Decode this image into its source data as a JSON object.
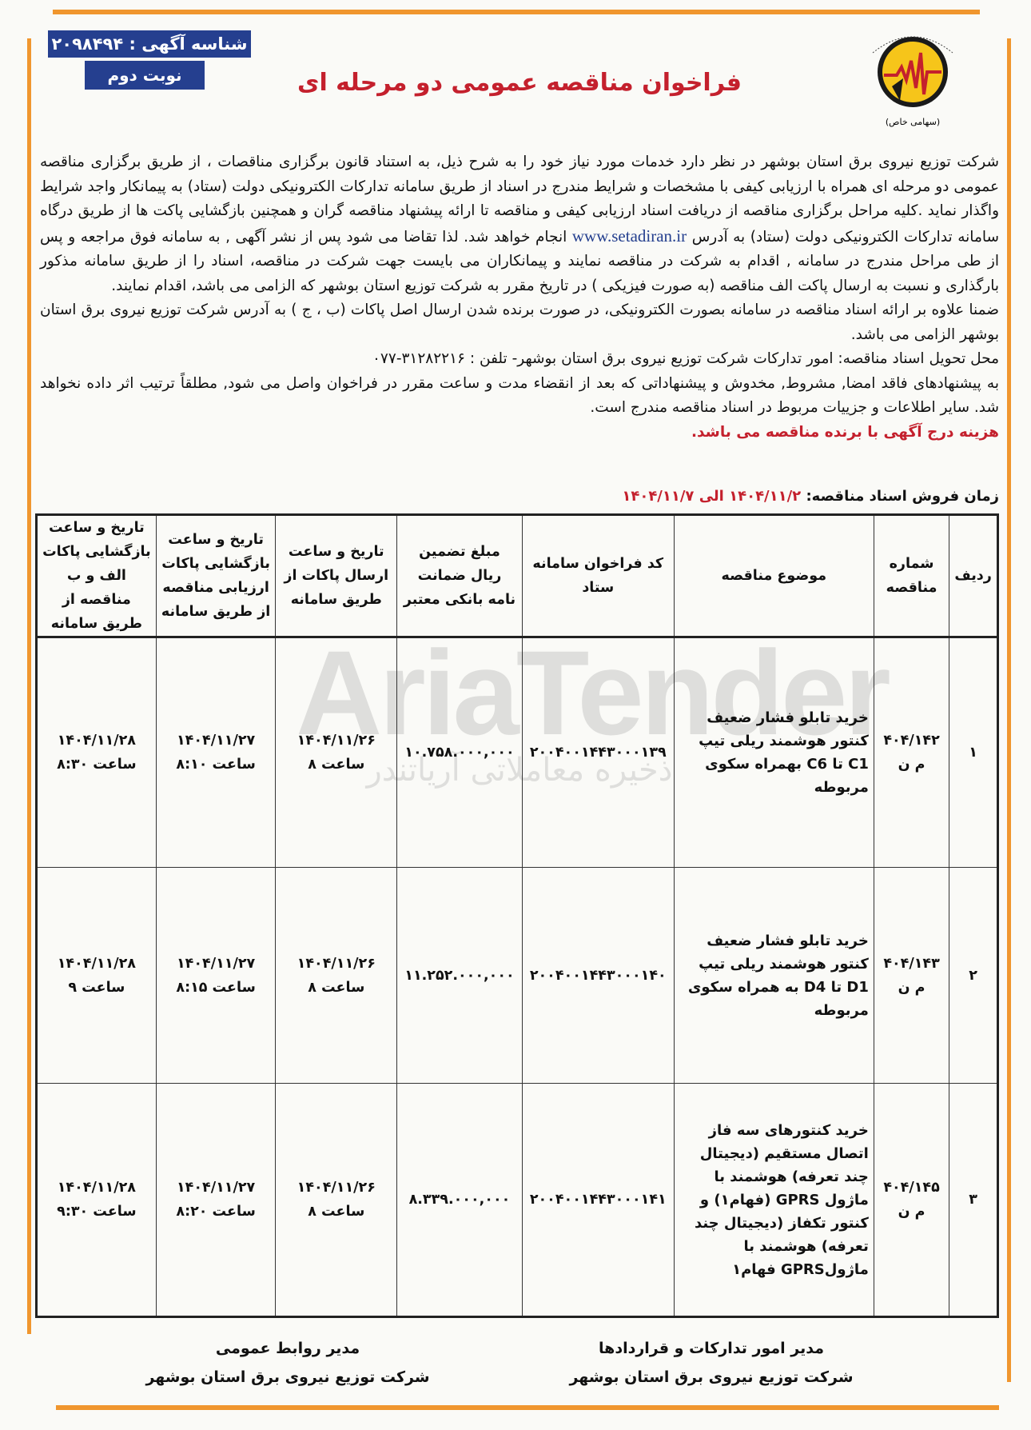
{
  "header": {
    "ad_id_label": "شناسه آگهی : ۲۰۹۸۴۹۴",
    "round_label": "نوبت دوم",
    "title": "فراخوان مناقصه عمومی دو مرحله ای",
    "logo": {
      "ring_text": "شرکت توزیع نیروی برق استان بوشهر",
      "caption": "(سهامی خاص)",
      "colors": {
        "circle": "#f6c51a",
        "bolt": "#c4202d"
      }
    }
  },
  "body": {
    "para1_before_link": "شرکت توزیع نیروی برق استان بوشهر در نظر دارد خدمات مورد نیاز خود را به شرح ذیل، به استناد قانون برگزاری مناقصات ، از طریق برگزاری مناقصه عمومی دو مرحله ای همراه با ارزیابی کیفی با مشخصات و شرایط مندرج در اسناد از طریق سامانه تدارکات الکترونیکی دولت (ستاد) به پیمانکار واجد شرایط واگذار نماید .کلیه مراحل برگزاری مناقصه از دریافت اسناد ارزیابی کیفی و مناقصه تا ارائه پیشنهاد مناقصه گران و همچنین بازگشایی پاکت ها از طریق درگاه سامانه تدارکات الکترونیکی دولت (ستاد) به آدرس",
    "link": "www.setadiran.ir",
    "para1_after_link": "انجام خواهد شد. لذا تقاضا می شود پس از نشر آگهی , به سامانه فوق مراجعه و پس از طی مراحل مندرج در سامانه , اقدام به شرکت در مناقصه نمایند و پیمانکاران می بایست جهت شرکت در مناقصه، اسناد را از طریق سامانه مذکور بارگذاری و نسبت به ارسال پاکت الف مناقصه (به صورت فیزیکی ) در تاریخ مقرر به شرکت توزیع استان بوشهر که الزامی می باشد، اقدام نمایند.",
    "para2": "ضمنا علاوه بر ارائه اسناد مناقصه در سامانه بصورت الکترونیکی، در صورت برنده شدن ارسال اصل پاکات (ب ، ج ) به آدرس شرکت توزیع نیروی برق استان بوشهر الزامی می باشد.",
    "para3": "محل تحویل اسناد مناقصه: امور تدارکات شرکت توزیع نیروی برق استان بوشهر- تلفن : ۳۱۲۸۲۲۱۶-۰۷۷",
    "para4": "به پیشنهادهای فاقد امضا, مشروط, مخدوش و پیشنهاداتی که بعد از انقضاء مدت و ساعت مقرر در فراخوان واصل می شود, مطلقاً ترتیب اثر داده نخواهد شد. سایر اطلاعات و جزییات مربوط در اسناد مناقصه مندرج است.",
    "notice_red": "هزینه درج آگهی با برنده مناقصه می باشد."
  },
  "sale": {
    "label": "زمان فروش اسناد مناقصه:",
    "period": "۱۴۰۴/۱۱/۲ الی ۱۴۰۴/۱۱/۷"
  },
  "table": {
    "headers": [
      "ردیف",
      "شماره مناقصه",
      "موضوع مناقصه",
      "کد فراخوان سامانه ستاد",
      "مبلغ تضمین ریال ضمانت نامه بانکی معتبر",
      "تاریخ و ساعت ارسال پاکات از طریق سامانه",
      "تاریخ و ساعت بازگشایی پاکات ارزیابی مناقصه از طریق سامانه",
      "تاریخ و ساعت بازگشایی پاکات الف و ب مناقصه از طریق سامانه"
    ],
    "rows": [
      {
        "index": "۱",
        "number": "۴۰۴/۱۴۲ م ن",
        "subject": "خرید تابلو فشار ضعیف کنتور هوشمند ریلی تیپ C1 تا C6 بهمراه سکوی مربوطه",
        "code": "۲۰۰۴۰۰۱۴۴۳۰۰۰۱۳۹",
        "guarantee": "۱۰.۷۵۸.۰۰۰,۰۰۰",
        "send": "۱۴۰۴/۱۱/۲۶ ساعت ۸",
        "eval_open": "۱۴۰۴/۱۱/۲۷ ساعت ۸:۱۰",
        "ab_open": "۱۴۰۴/۱۱/۲۸ ساعت ۸:۳۰"
      },
      {
        "index": "۲",
        "number": "۴۰۴/۱۴۳ م ن",
        "subject": "خرید تابلو فشار ضعیف کنتور هوشمند ریلی تیپ D1 تا D4 به همراه سکوی مربوطه",
        "code": "۲۰۰۴۰۰۱۴۴۳۰۰۰۱۴۰",
        "guarantee": "۱۱.۲۵۲.۰۰۰,۰۰۰",
        "send": "۱۴۰۴/۱۱/۲۶ ساعت ۸",
        "eval_open": "۱۴۰۴/۱۱/۲۷ ساعت ۸:۱۵",
        "ab_open": "۱۴۰۴/۱۱/۲۸ ساعت ۹"
      },
      {
        "index": "۳",
        "number": "۴۰۴/۱۴۵ م ن",
        "subject": "خرید کنتورهای سه فاز اتصال مستقیم (دیجیتال چند تعرفه) هوشمند با ماژول GPRS (فهام۱) و کنتور تکفاز (دیجیتال چند تعرفه) هوشمند با ماژولGPRS فهام۱",
        "code": "۲۰۰۴۰۰۱۴۴۳۰۰۰۱۴۱",
        "guarantee": "۸.۳۳۹.۰۰۰,۰۰۰",
        "send": "۱۴۰۴/۱۱/۲۶ ساعت ۸",
        "eval_open": "۱۴۰۴/۱۱/۲۷ ساعت ۸:۲۰",
        "ab_open": "۱۴۰۴/۱۱/۲۸ ساعت ۹:۳۰"
      }
    ]
  },
  "watermark": {
    "main": "AriaTender",
    "sub": "ذخیره معاملاتی آریاتندر"
  },
  "signatures": [
    {
      "title": "مدیر امور تدارکات و قراردادها",
      "org": "شرکت توزیع نیروی برق استان بوشهر"
    },
    {
      "title": "مدیر روابط عمومی",
      "org": "شرکت توزیع نیروی برق استان بوشهر"
    }
  ],
  "colors": {
    "accent_orange": "#f0962e",
    "badge_blue": "#253f8f",
    "title_red": "#c4202d"
  }
}
